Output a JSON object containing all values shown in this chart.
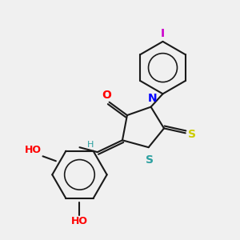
{
  "background_color": "#f0f0f0",
  "bond_color": "#1a1a1a",
  "atom_colors": {
    "O": "#ff0000",
    "N": "#0000ff",
    "S_thioxo": "#cccc00",
    "S_ring": "#2ca0a0",
    "I": "#cc00cc",
    "H": "#2ca0a0",
    "HO": "#ff0000"
  },
  "figsize": [
    3.0,
    3.0
  ],
  "dpi": 100
}
